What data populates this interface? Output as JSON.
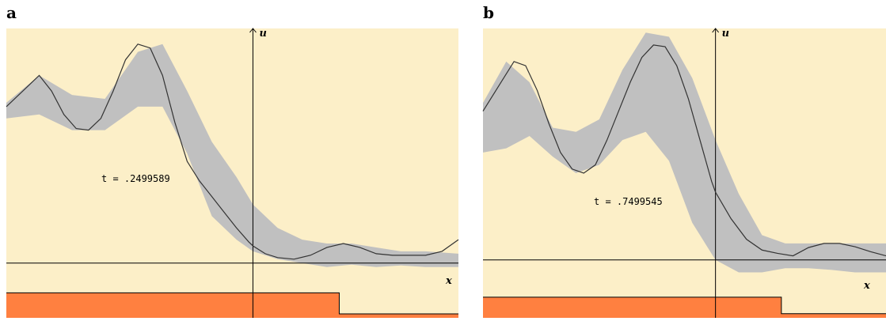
{
  "panels": [
    {
      "label": "a"
    },
    {
      "label": "b"
    }
  ],
  "chart_data": [
    {
      "type": "line",
      "panel": "a",
      "annotation": "t = .2499589",
      "xlabel": "x",
      "ylabel": "u",
      "xlim": [
        -3.0,
        2.5
      ],
      "ylim": [
        -0.7,
        3.0
      ],
      "colors": {
        "background": "#fcefc8",
        "band": "#c0c0c0",
        "curve": "#333333",
        "step": "#ff8040"
      },
      "series": [
        {
          "role": "solution",
          "x": [
            -3.0,
            -2.8,
            -2.6,
            -2.45,
            -2.3,
            -2.15,
            -2.0,
            -1.85,
            -1.7,
            -1.55,
            -1.4,
            -1.25,
            -1.1,
            -0.95,
            -0.8,
            -0.65,
            -0.5,
            -0.35,
            -0.2,
            -0.05,
            0.0,
            0.15,
            0.3,
            0.5,
            0.7,
            0.9,
            1.1,
            1.3,
            1.5,
            1.7,
            1.9,
            2.1,
            2.3,
            2.5
          ],
          "y": [
            2.0,
            2.2,
            2.4,
            2.2,
            1.9,
            1.72,
            1.7,
            1.85,
            2.2,
            2.6,
            2.8,
            2.75,
            2.4,
            1.8,
            1.3,
            1.05,
            0.85,
            0.65,
            0.45,
            0.27,
            0.22,
            0.12,
            0.07,
            0.05,
            0.1,
            0.2,
            0.25,
            0.2,
            0.12,
            0.1,
            0.1,
            0.1,
            0.15,
            0.3
          ]
        }
      ],
      "band": {
        "x": [
          -3.0,
          -2.6,
          -2.2,
          -1.8,
          -1.4,
          -1.1,
          -0.8,
          -0.5,
          -0.2,
          0.0,
          0.3,
          0.6,
          0.9,
          1.2,
          1.5,
          1.8,
          2.1,
          2.5
        ],
        "lower": [
          1.85,
          1.9,
          1.7,
          1.7,
          2.0,
          2.0,
          1.4,
          0.6,
          0.3,
          0.15,
          0.05,
          0.0,
          -0.05,
          -0.02,
          -0.05,
          -0.03,
          -0.05,
          -0.05
        ],
        "upper": [
          2.05,
          2.4,
          2.15,
          2.1,
          2.7,
          2.8,
          2.2,
          1.55,
          1.1,
          0.75,
          0.45,
          0.3,
          0.25,
          0.25,
          0.2,
          0.15,
          0.15,
          0.12
        ]
      },
      "step": {
        "x": [
          -3.0,
          1.05,
          1.05,
          2.5
        ],
        "y": [
          -0.38,
          -0.38,
          -0.65,
          -0.65
        ]
      }
    },
    {
      "type": "line",
      "panel": "b",
      "annotation": "t = .7499545",
      "xlabel": "x",
      "ylabel": "u",
      "xlim": [
        -3.0,
        2.2
      ],
      "ylim": [
        -0.7,
        2.8
      ],
      "colors": {
        "background": "#fcefc8",
        "band": "#c0c0c0",
        "curve": "#333333",
        "step": "#ff8040"
      },
      "series": [
        {
          "role": "solution",
          "x": [
            -3.0,
            -2.8,
            -2.6,
            -2.45,
            -2.3,
            -2.15,
            -2.0,
            -1.85,
            -1.7,
            -1.55,
            -1.4,
            -1.25,
            -1.1,
            -0.95,
            -0.8,
            -0.65,
            -0.5,
            -0.35,
            -0.2,
            -0.05,
            0.0,
            0.2,
            0.4,
            0.6,
            0.8,
            1.0,
            1.2,
            1.4,
            1.6,
            1.8,
            2.0,
            2.2
          ],
          "y": [
            1.8,
            2.1,
            2.4,
            2.35,
            2.05,
            1.65,
            1.3,
            1.1,
            1.05,
            1.15,
            1.45,
            1.8,
            2.15,
            2.45,
            2.6,
            2.58,
            2.35,
            1.95,
            1.45,
            0.95,
            0.82,
            0.5,
            0.25,
            0.12,
            0.08,
            0.05,
            0.15,
            0.2,
            0.2,
            0.16,
            0.1,
            0.05
          ]
        }
      ],
      "band": {
        "x": [
          -3.0,
          -2.7,
          -2.4,
          -2.1,
          -1.8,
          -1.5,
          -1.2,
          -0.9,
          -0.6,
          -0.3,
          0.0,
          0.3,
          0.6,
          0.9,
          1.2,
          1.5,
          1.8,
          2.2
        ],
        "lower": [
          1.3,
          1.35,
          1.5,
          1.25,
          1.05,
          1.15,
          1.45,
          1.55,
          1.2,
          0.45,
          0.0,
          -0.15,
          -0.15,
          -0.1,
          -0.1,
          -0.12,
          -0.15,
          -0.15
        ],
        "upper": [
          1.9,
          2.4,
          2.15,
          1.6,
          1.55,
          1.7,
          2.3,
          2.75,
          2.7,
          2.2,
          1.45,
          0.8,
          0.3,
          0.2,
          0.2,
          0.2,
          0.2,
          0.2
        ]
      },
      "step": {
        "x": [
          -3.0,
          0.85,
          0.85,
          2.2
        ],
        "y": [
          -0.45,
          -0.45,
          -0.65,
          -0.65
        ]
      }
    }
  ]
}
